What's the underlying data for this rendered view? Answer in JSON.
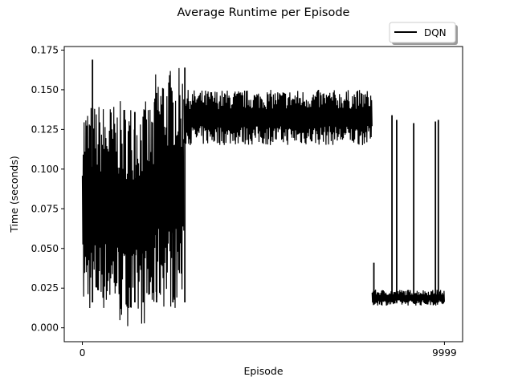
{
  "chart_data": {
    "type": "line",
    "title": "Average Runtime per Episode",
    "xlabel": "Episode",
    "ylabel": "Time (seconds)",
    "xlim": [
      -500,
      10500
    ],
    "ylim": [
      -0.00875,
      0.17725
    ],
    "x_ticks": [
      0,
      9999
    ],
    "x_tick_labels": [
      "0",
      "9999"
    ],
    "y_ticks": [
      0.0,
      0.025,
      0.05,
      0.075,
      0.1,
      0.125,
      0.15,
      0.175
    ],
    "y_tick_labels": [
      "0.000",
      "0.025",
      "0.050",
      "0.075",
      "0.100",
      "0.125",
      "0.150",
      "0.175"
    ],
    "grid": false,
    "legend_position": "top-right, above plot",
    "series": [
      {
        "name": "DQN",
        "color": "#000000",
        "segments": [
          {
            "x_start": 0,
            "x_end": 1000,
            "low": 0.01,
            "high": 0.142,
            "note_values": [
              0.169,
              0.128
            ]
          },
          {
            "x_start": 1000,
            "x_end": 2000,
            "low": 0.001,
            "high": 0.143
          },
          {
            "x_start": 2000,
            "x_end": 2800,
            "low": 0.012,
            "high": 0.164
          },
          {
            "x_start": 2800,
            "x_end": 8000,
            "low": 0.115,
            "high": 0.15
          },
          {
            "x_start": 8000,
            "x_end": 9999,
            "low": 0.014,
            "high": 0.024
          }
        ],
        "spikes": [
          {
            "x": 280,
            "y": 0.169
          },
          {
            "x": 1450,
            "y": 0.136
          },
          {
            "x": 1680,
            "y": 0.133
          },
          {
            "x": 2050,
            "y": 0.148
          },
          {
            "x": 2500,
            "y": 0.142
          },
          {
            "x": 2830,
            "y": 0.164
          },
          {
            "x": 2880,
            "y": 0.016
          },
          {
            "x": 8050,
            "y": 0.041
          },
          {
            "x": 8550,
            "y": 0.134
          },
          {
            "x": 8680,
            "y": 0.131
          },
          {
            "x": 9150,
            "y": 0.129
          },
          {
            "x": 9750,
            "y": 0.13
          },
          {
            "x": 9830,
            "y": 0.131
          }
        ]
      }
    ]
  }
}
